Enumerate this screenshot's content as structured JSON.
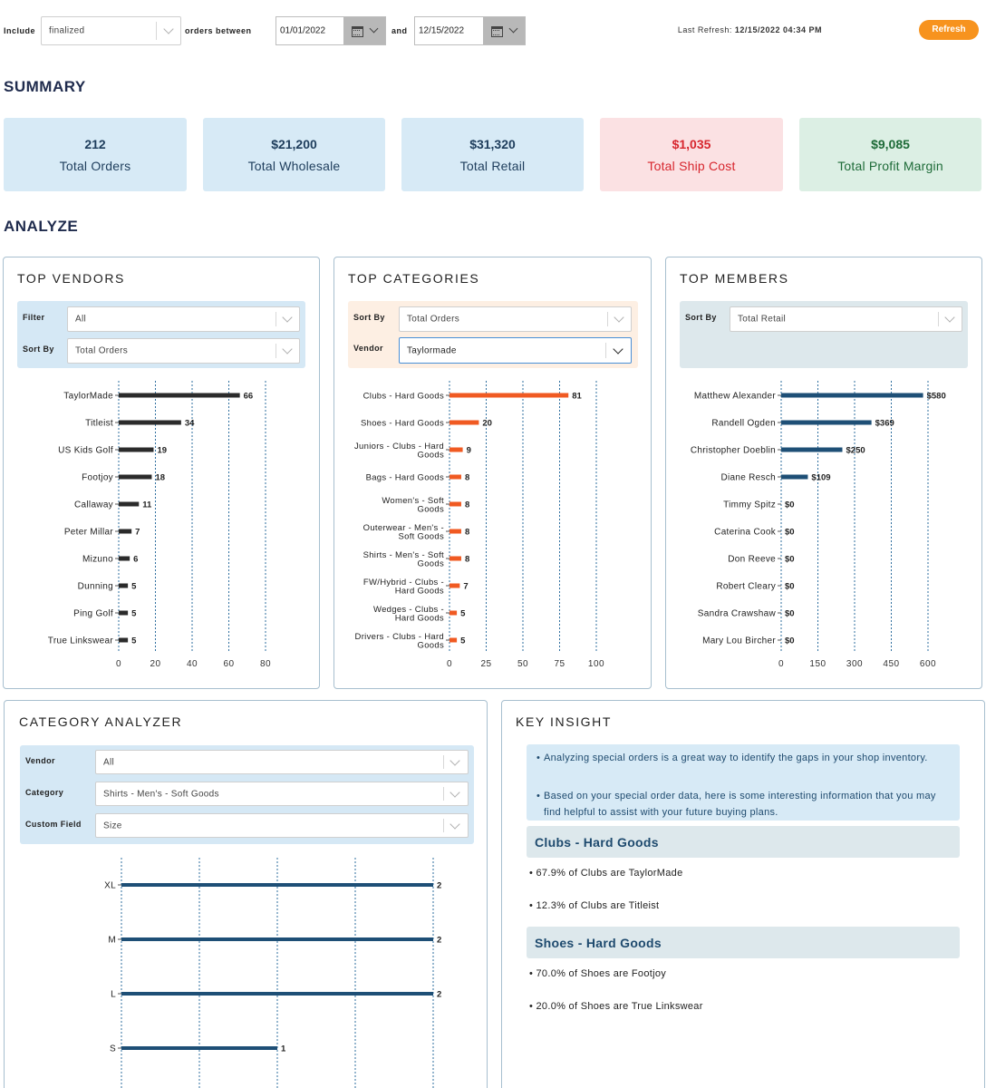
{
  "filters_bar": {
    "include_label": "Include",
    "include_value": "finalized",
    "orders_between_label": "orders between",
    "start_date": "01/01/2022",
    "and_label": "and",
    "end_date": "12/15/2022",
    "last_refresh_label": "Last Refresh:",
    "last_refresh_value": "12/15/2022 04:34 PM",
    "refresh_button": "Refresh"
  },
  "summary": {
    "title": "SUMMARY",
    "cards": [
      {
        "value": "212",
        "label": "Total Orders"
      },
      {
        "value": "$21,200",
        "label": "Total Wholesale"
      },
      {
        "value": "$31,320",
        "label": "Total Retail"
      },
      {
        "value": "$1,035",
        "label": "Total Ship Cost"
      },
      {
        "value": "$9,085",
        "label": "Total Profit Margin"
      }
    ]
  },
  "analyze": {
    "title": "ANALYZE",
    "top_vendors": {
      "title": "TOP VENDORS",
      "filter_label": "Filter",
      "filter_value": "All",
      "sort_label": "Sort By",
      "sort_value": "Total Orders"
    },
    "top_categories": {
      "title": "TOP CATEGORIES",
      "sort_label": "Sort By",
      "sort_value": "Total Orders",
      "vendor_label": "Vendor",
      "vendor_value": "Taylormade"
    },
    "top_members": {
      "title": "TOP MEMBERS",
      "sort_label": "Sort By",
      "sort_value": "Total Retail"
    }
  },
  "category_analyzer": {
    "title": "CATEGORY ANALYZER",
    "vendor_label": "Vendor",
    "vendor_value": "All",
    "category_label": "Category",
    "category_value": "Shirts - Men's - Soft Goods",
    "custom_field_label": "Custom Field",
    "custom_field_value": "Size"
  },
  "key_insight": {
    "title": "KEY INSIGHT",
    "intro": [
      "Analyzing special orders is a great way to identify the gaps in your shop inventory.",
      "Based on your special order data, here is some interesting information that you may find helpful to assist with your future buying plans."
    ],
    "groups": [
      {
        "heading": "Clubs - Hard Goods",
        "items": [
          "67.9% of Clubs are TaylorMade",
          "12.3% of Clubs are Titleist"
        ]
      },
      {
        "heading": "Shoes - Hard Goods",
        "items": [
          "70.0% of Shoes are Footjoy",
          "20.0% of Shoes are True Linkswear"
        ]
      }
    ]
  },
  "chart_data": [
    {
      "type": "bar",
      "orientation": "horizontal",
      "title": "TOP VENDORS",
      "color": "#2b2b2b",
      "categories": [
        [
          "TaylorMade"
        ],
        [
          "Titleist"
        ],
        [
          "US Kids Golf"
        ],
        [
          "Footjoy"
        ],
        [
          "Callaway"
        ],
        [
          "Peter Millar"
        ],
        [
          "Mizuno"
        ],
        [
          "Dunning"
        ],
        [
          "Ping Golf"
        ],
        [
          "True Linkswear"
        ]
      ],
      "values": [
        66,
        34,
        19,
        18,
        11,
        7,
        6,
        5,
        5,
        5
      ],
      "value_labels": [
        "66",
        "34",
        "19",
        "18",
        "11",
        "7",
        "6",
        "5",
        "5",
        "5"
      ],
      "xlim": [
        0,
        80
      ],
      "ticks": [
        0,
        20,
        40,
        60,
        80
      ],
      "grid": true
    },
    {
      "type": "bar",
      "orientation": "horizontal",
      "title": "TOP CATEGORIES",
      "color": "#f05a22",
      "categories": [
        [
          "Clubs - Hard Goods"
        ],
        [
          "Shoes - Hard Goods"
        ],
        [
          "Juniors - Clubs - Hard",
          "Goods"
        ],
        [
          "Bags - Hard Goods"
        ],
        [
          "Women's - Soft",
          "Goods"
        ],
        [
          "Outerwear - Men's -",
          "Soft Goods"
        ],
        [
          "Shirts - Men's - Soft",
          "Goods"
        ],
        [
          "FW/Hybrid - Clubs -",
          "Hard Goods"
        ],
        [
          "Wedges - Clubs -",
          "Hard Goods"
        ],
        [
          "Drivers - Clubs - Hard",
          "Goods"
        ]
      ],
      "values": [
        81,
        20,
        9,
        8,
        8,
        8,
        8,
        7,
        5,
        5
      ],
      "value_labels": [
        "81",
        "20",
        "9",
        "8",
        "8",
        "8",
        "8",
        "7",
        "5",
        "5"
      ],
      "xlim": [
        0,
        100
      ],
      "ticks": [
        0,
        25,
        50,
        75,
        100
      ],
      "grid": true
    },
    {
      "type": "bar",
      "orientation": "horizontal",
      "title": "TOP MEMBERS",
      "color": "#1e4f76",
      "categories": [
        [
          "Matthew Alexander"
        ],
        [
          "Randell Ogden"
        ],
        [
          "Christopher Doeblin"
        ],
        [
          "Diane Resch"
        ],
        [
          "Timmy Spitz"
        ],
        [
          "Caterina Cook"
        ],
        [
          "Don Reeve"
        ],
        [
          "Robert Cleary"
        ],
        [
          "Sandra Crawshaw"
        ],
        [
          "Mary Lou Bircher"
        ]
      ],
      "values": [
        580,
        369,
        250,
        109,
        0,
        0,
        0,
        0,
        0,
        0
      ],
      "value_labels": [
        "$580",
        "$369",
        "$250",
        "$109",
        "$0",
        "$0",
        "$0",
        "$0",
        "$0",
        "$0"
      ],
      "xlim": [
        0,
        600
      ],
      "ticks": [
        0,
        150,
        300,
        450,
        600
      ],
      "grid": true
    },
    {
      "type": "bar",
      "orientation": "horizontal",
      "title": "CATEGORY ANALYZER",
      "color": "#1e4f76",
      "categories": [
        [
          "XL"
        ],
        [
          "M"
        ],
        [
          "L"
        ],
        [
          "S"
        ]
      ],
      "values": [
        2,
        2,
        2,
        1
      ],
      "value_labels": [
        "2",
        "2",
        "2",
        "1"
      ],
      "xlim": [
        0,
        2
      ],
      "ticks": [],
      "grid": true
    }
  ]
}
